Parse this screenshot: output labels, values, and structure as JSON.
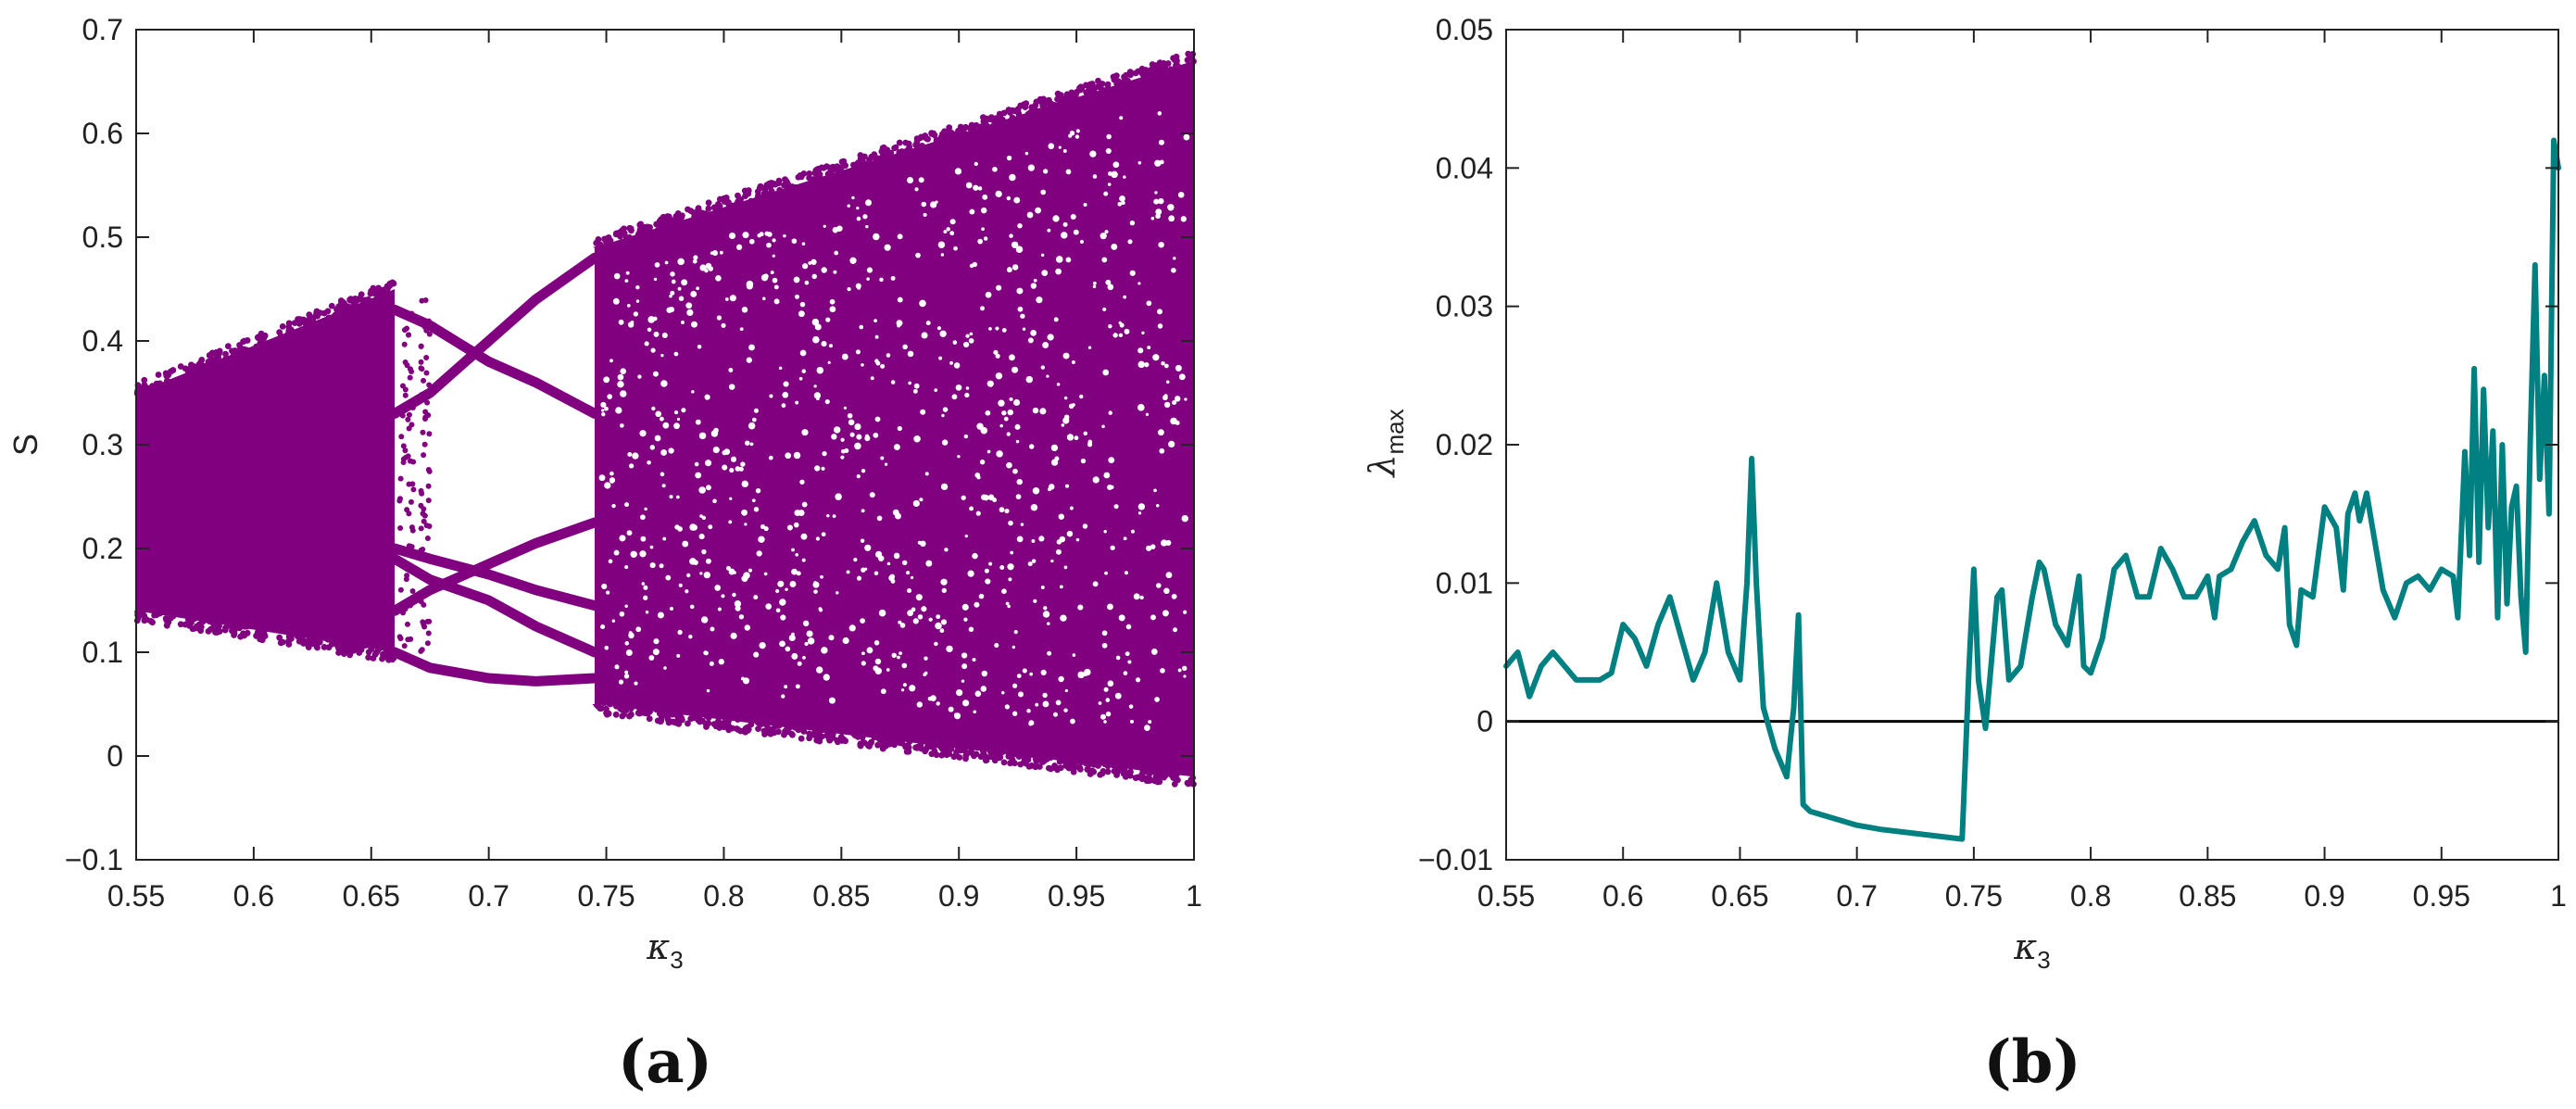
{
  "colors": {
    "bifurcation": "#800080",
    "lyapunov": "#008080",
    "zero_line": "#000000"
  },
  "chart_data": [
    {
      "type": "scatter",
      "panel_label": "(a)",
      "xlabel": "κ",
      "xlabel_sub": "3",
      "ylabel": "S",
      "xlim": [
        0.55,
        1.0
      ],
      "ylim": [
        -0.1,
        0.7
      ],
      "xticks": [
        0.55,
        0.6,
        0.65,
        0.7,
        0.75,
        0.8,
        0.85,
        0.9,
        0.95,
        1
      ],
      "xtick_labels": [
        "0.55",
        "0.6",
        "0.65",
        "0.7",
        "0.75",
        "0.8",
        "0.85",
        "0.9",
        "0.95",
        "1"
      ],
      "yticks": [
        -0.1,
        0,
        0.1,
        0.2,
        0.3,
        0.4,
        0.5,
        0.6,
        0.7
      ],
      "ytick_labels": [
        "−0.1",
        "0",
        "0.1",
        "0.2",
        "0.3",
        "0.4",
        "0.5",
        "0.6",
        "0.7"
      ],
      "grid": false,
      "series": [
        {
          "chaotic_bands": [
            {
              "x": [
                0.55,
                0.66
              ],
              "lower": [
                0.14,
                0.1
              ],
              "upper": [
                0.35,
                0.45
              ]
            },
            {
              "x": [
                0.745,
                1.0
              ],
              "lower": [
                0.05,
                -0.02
              ],
              "upper": [
                0.49,
                0.67
              ]
            }
          ],
          "periodic_branches": [
            {
              "x": [
                0.66,
                0.675,
                0.7,
                0.72,
                0.745
              ],
              "y": [
                0.43,
                0.415,
                0.38,
                0.36,
                0.33
              ]
            },
            {
              "x": [
                0.66,
                0.675,
                0.7,
                0.72,
                0.745
              ],
              "y": [
                0.33,
                0.35,
                0.4,
                0.44,
                0.48
              ]
            },
            {
              "x": [
                0.66,
                0.675,
                0.7,
                0.72,
                0.745
              ],
              "y": [
                0.19,
                0.17,
                0.15,
                0.125,
                0.1
              ]
            },
            {
              "x": [
                0.66,
                0.675,
                0.7,
                0.72,
                0.745
              ],
              "y": [
                0.14,
                0.16,
                0.185,
                0.205,
                0.225
              ]
            },
            {
              "x": [
                0.66,
                0.675,
                0.7,
                0.72,
                0.745
              ],
              "y": [
                0.1,
                0.085,
                0.075,
                0.072,
                0.075
              ]
            },
            {
              "x": [
                0.66,
                0.675,
                0.7,
                0.72,
                0.745
              ],
              "y": [
                0.2,
                0.19,
                0.175,
                0.16,
                0.145
              ]
            }
          ]
        }
      ]
    },
    {
      "type": "line",
      "panel_label": "(b)",
      "xlabel": "κ",
      "xlabel_sub": "3",
      "ylabel": "λ",
      "ylabel_sub": "max",
      "xlim": [
        0.55,
        1.0
      ],
      "ylim": [
        -0.01,
        0.05
      ],
      "xticks": [
        0.55,
        0.6,
        0.65,
        0.7,
        0.75,
        0.8,
        0.85,
        0.9,
        0.95,
        1
      ],
      "xtick_labels": [
        "0.55",
        "0.6",
        "0.65",
        "0.7",
        "0.75",
        "0.8",
        "0.85",
        "0.9",
        "0.95",
        "1"
      ],
      "yticks": [
        -0.01,
        0,
        0.01,
        0.02,
        0.03,
        0.04,
        0.05
      ],
      "ytick_labels": [
        "−0.01",
        "0",
        "0.01",
        "0.02",
        "0.03",
        "0.04",
        "0.05"
      ],
      "grid": false,
      "reference_line_y": 0,
      "series": [
        {
          "x": [
            0.55,
            0.555,
            0.56,
            0.565,
            0.57,
            0.575,
            0.58,
            0.585,
            0.59,
            0.595,
            0.6,
            0.605,
            0.61,
            0.615,
            0.62,
            0.625,
            0.63,
            0.635,
            0.64,
            0.645,
            0.65,
            0.653,
            0.655,
            0.657,
            0.66,
            0.665,
            0.67,
            0.673,
            0.675,
            0.677,
            0.68,
            0.69,
            0.7,
            0.71,
            0.72,
            0.73,
            0.74,
            0.745,
            0.748,
            0.75,
            0.752,
            0.755,
            0.76,
            0.762,
            0.765,
            0.77,
            0.775,
            0.778,
            0.78,
            0.785,
            0.79,
            0.795,
            0.797,
            0.8,
            0.805,
            0.81,
            0.815,
            0.82,
            0.825,
            0.83,
            0.835,
            0.84,
            0.845,
            0.85,
            0.853,
            0.855,
            0.86,
            0.865,
            0.87,
            0.875,
            0.88,
            0.883,
            0.885,
            0.888,
            0.89,
            0.895,
            0.9,
            0.905,
            0.908,
            0.91,
            0.913,
            0.915,
            0.918,
            0.92,
            0.925,
            0.93,
            0.935,
            0.94,
            0.945,
            0.95,
            0.955,
            0.957,
            0.96,
            0.962,
            0.964,
            0.966,
            0.968,
            0.97,
            0.972,
            0.974,
            0.976,
            0.978,
            0.98,
            0.982,
            0.984,
            0.986,
            0.988,
            0.99,
            0.992,
            0.994,
            0.996,
            0.998,
            1.0
          ],
          "y": [
            0.004,
            0.005,
            0.0018,
            0.004,
            0.005,
            0.004,
            0.003,
            0.003,
            0.003,
            0.0035,
            0.007,
            0.006,
            0.004,
            0.007,
            0.009,
            0.006,
            0.003,
            0.005,
            0.01,
            0.005,
            0.003,
            0.01,
            0.019,
            0.01,
            0.001,
            -0.002,
            -0.004,
            0.001,
            0.0077,
            -0.006,
            -0.0065,
            -0.007,
            -0.0075,
            -0.0078,
            -0.008,
            -0.0082,
            -0.0084,
            -0.0085,
            0.004,
            0.011,
            0.003,
            -0.0005,
            0.009,
            0.0095,
            0.003,
            0.004,
            0.009,
            0.0115,
            0.011,
            0.007,
            0.0055,
            0.0105,
            0.004,
            0.0035,
            0.006,
            0.011,
            0.012,
            0.009,
            0.009,
            0.0125,
            0.011,
            0.009,
            0.009,
            0.0105,
            0.0075,
            0.0105,
            0.011,
            0.013,
            0.0145,
            0.012,
            0.011,
            0.014,
            0.007,
            0.0055,
            0.0095,
            0.009,
            0.0155,
            0.014,
            0.0095,
            0.015,
            0.0165,
            0.0145,
            0.0165,
            0.0145,
            0.0095,
            0.0075,
            0.01,
            0.0105,
            0.0095,
            0.011,
            0.0105,
            0.0075,
            0.0195,
            0.012,
            0.0255,
            0.0115,
            0.024,
            0.014,
            0.021,
            0.0075,
            0.02,
            0.0085,
            0.0155,
            0.017,
            0.009,
            0.005,
            0.0205,
            0.033,
            0.0175,
            0.025,
            0.015,
            0.042,
            0.04
          ]
        }
      ]
    }
  ]
}
